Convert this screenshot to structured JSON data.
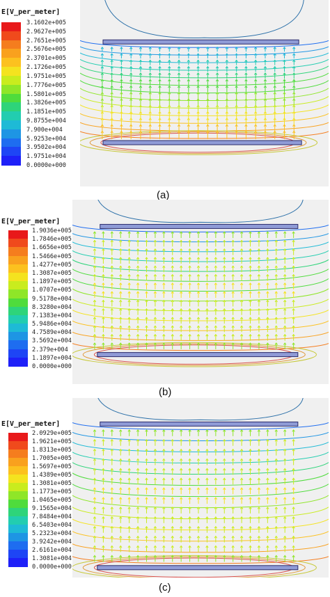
{
  "figure": {
    "panels": [
      {
        "caption": "(a)",
        "legend": {
          "title": "E[V_per_meter]",
          "values": [
            "3.1602e+005",
            "2.9627e+005",
            "2.7651e+005",
            "2.5676e+005",
            "2.3701e+005",
            "2.1726e+005",
            "1.9751e+005",
            "1.7776e+005",
            "1.5801e+005",
            "1.3826e+005",
            "1.1851e+005",
            "9.8755e+004",
            "7.900e+004",
            "5.9253e+004",
            "3.9502e+004",
            "1.9751e+004",
            "0.0000e+000"
          ]
        }
      },
      {
        "caption": "(b)",
        "legend": {
          "title": "E[V_per_meter]",
          "values": [
            "1.9036e+005",
            "1.7846e+005",
            "1.6656e+005",
            "1.5466e+005",
            "1.4277e+005",
            "1.3087e+005",
            "1.1897e+005",
            "1.0707e+005",
            "9.5178e+004",
            "8.3280e+004",
            "7.1383e+004",
            "5.9486e+004",
            "4.7589e+004",
            "3.5692e+004",
            "2.379e+004",
            "1.1897e+004",
            "0.0000e+000"
          ]
        }
      },
      {
        "caption": "(c)",
        "legend": {
          "title": "E[V_per_meter]",
          "values": [
            "2.0929e+005",
            "1.9621e+005",
            "1.8313e+005",
            "1.7005e+005",
            "1.5697e+005",
            "1.4389e+005",
            "1.3081e+005",
            "1.1773e+005",
            "1.0465e+005",
            "9.1565e+004",
            "7.8484e+004",
            "6.5403e+004",
            "5.2323e+004",
            "3.9242e+004",
            "2.6161e+004",
            "1.3081e+004",
            "0.0000e+000"
          ]
        }
      }
    ],
    "colors": {
      "scale": [
        "#e8191a",
        "#f04a1c",
        "#f57d1e",
        "#f9a11e",
        "#fcc11f",
        "#f4e31f",
        "#c9ec1e",
        "#8fe628",
        "#4fdc3c",
        "#2ed47a",
        "#22cdb0",
        "#1ebad6",
        "#1e95e4",
        "#1e6df0",
        "#1e45f5",
        "#1e20f8"
      ],
      "electrode_fill": "#8f9bd6",
      "electrode_stroke": "#2b2b6b"
    }
  }
}
